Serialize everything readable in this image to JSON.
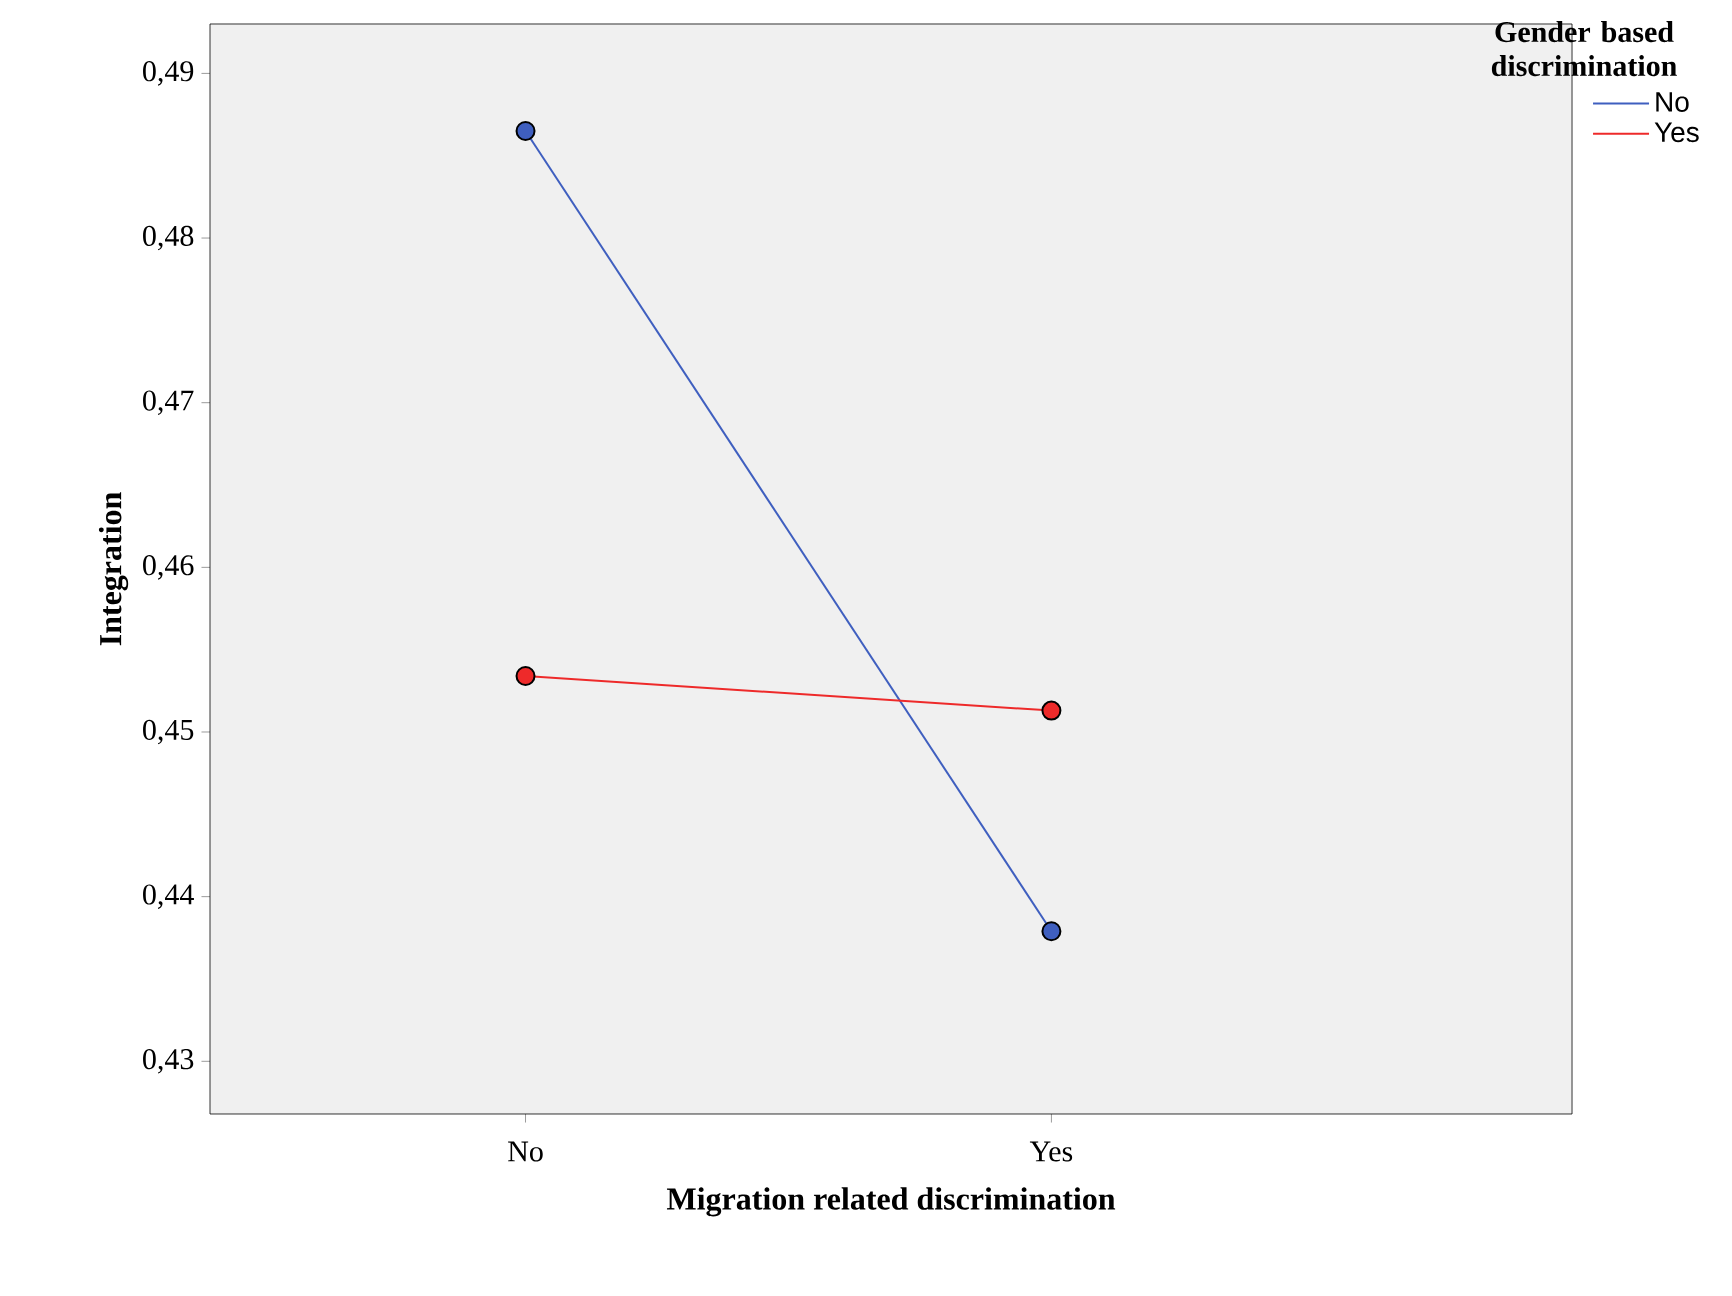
{
  "chart_data": {
    "type": "line",
    "xlabel": "Migration related discrimination",
    "ylabel": "Integration",
    "legend_title": "Gender based discrimination",
    "categories": [
      "No",
      "Yes"
    ],
    "series": [
      {
        "name": "No",
        "color": "#3f5fbf",
        "values": [
          0.4865,
          0.4379
        ]
      },
      {
        "name": "Yes",
        "color": "#ee2a2a",
        "values": [
          0.4534,
          0.4513
        ]
      }
    ],
    "ylim": [
      0.4268,
      0.493
    ],
    "yticks": [
      {
        "value": 0.43,
        "label": "0,43"
      },
      {
        "value": 0.44,
        "label": "0,44"
      },
      {
        "value": 0.45,
        "label": "0,45"
      },
      {
        "value": 0.46,
        "label": "0,46"
      },
      {
        "value": 0.47,
        "label": "0,47"
      },
      {
        "value": 0.48,
        "label": "0,48"
      },
      {
        "value": 0.49,
        "label": "0,49"
      }
    ],
    "legend": "top right",
    "marker": "circle",
    "line_style": "solid",
    "grid": false
  }
}
